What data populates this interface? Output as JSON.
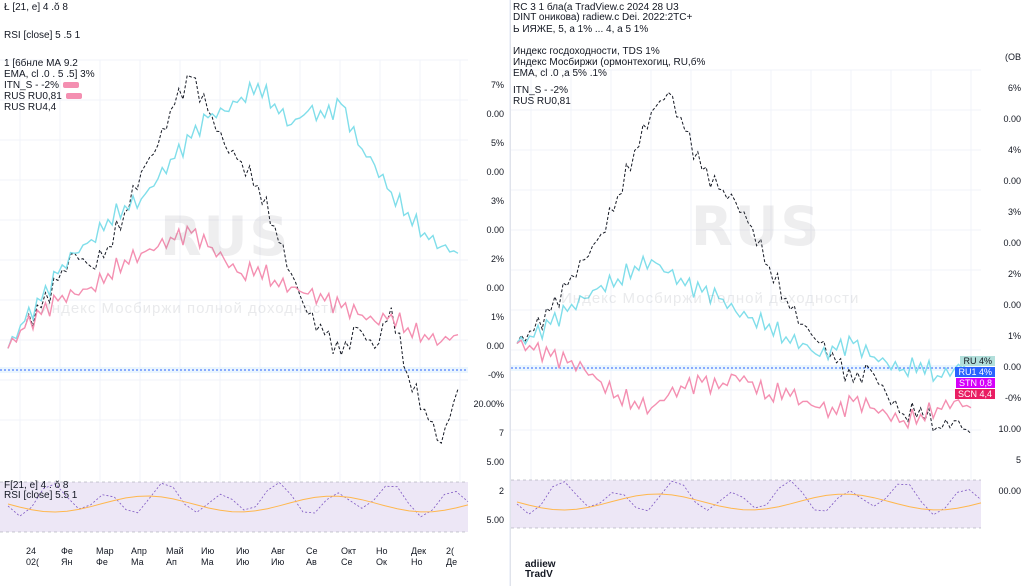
{
  "colors": {
    "series_black": "#131722",
    "series_cyan": "#80deea",
    "series_pink": "#f48fb1",
    "series_blue": "#2962ff",
    "series_orange": "#ffb74d",
    "rsi_fill": "#ede7f6",
    "grid": "#f0f3fa"
  },
  "left": {
    "header": [
      "Ł [21, e] 4 .ŏ 8",
      "RSI [close] 5 .5 1"
    ],
    "legend": [
      "1 [6бнле МА 9.2",
      "EMA, сl .0 . 5 .5] 3%",
      "IТN_S  -  -2%",
      "RUS  RU0,81",
      "RUS  RU4,4"
    ],
    "price_labels": [
      "7%",
      "0.00",
      "5%",
      "0.00",
      "3%",
      "0.00",
      "2%",
      "0.00",
      "1%",
      "0.00",
      "-0%",
      "20.00%",
      "7",
      "5.00",
      "2",
      "5.00"
    ],
    "rsi_legend": [
      "F[21, e] 4 . ŏ 8",
      "RSI [close] 5.5 1"
    ],
    "time_labels": [
      "24",
      "Фе",
      "Мар",
      "Апр",
      "Май",
      "Ию",
      "Ию",
      "Авг",
      "Се",
      "Окт",
      "Но",
      "Дек",
      "2("
    ],
    "time_sub": [
      "02(",
      "Ян",
      "Фе",
      "Ма",
      "Ап",
      "Ма",
      "Ию",
      "Ию",
      "Ав",
      "Се",
      "Ок",
      "Но",
      "Де"
    ],
    "watermark": "RUS",
    "sub_watermark": "Индекс Мосбиржи полной доходности"
  },
  "right": {
    "header": [
      "RC 3 1 бла(а TradView.c 2024 28 U3",
      "DINT оникова) radiew.c Dei. 2022:2TC+",
      "Ь ИЯЖЕ, 5, а 1% ... 4, а 5 1%"
    ],
    "legend": [
      "Индекс госдоходности, ТDS 1%",
      "Индекс Мосбиржи (ормонтехогиц, RU,б%",
      "EMA, сl .0 ,а 5% .1%",
      "IТN_S  -  -2%",
      "RUS  RU0,81"
    ],
    "price_labels": [
      "(ОВ",
      "6%",
      "0.00",
      "4%",
      "0.00",
      "3%",
      "0.00",
      "2%",
      "0.00",
      "1%",
      "0.00",
      "-0%",
      "10.00",
      "5",
      "00.00"
    ],
    "tags": [
      "RU 4%",
      "RU1 4%",
      "STN 0,8",
      "SCN 4,4"
    ],
    "time_labels": [
      "",
      "",
      "",
      "",
      "",
      "",
      "",
      "",
      "",
      "",
      "",
      "",
      ""
    ],
    "watermark": "RUS",
    "sub_watermark": "Индекс Мосбиржи полной доходности",
    "logo": [
      "adiiew",
      "TradV"
    ]
  },
  "chart_data": [
    {
      "type": "line",
      "title": "",
      "series": [
        {
          "name": "RUS RU0,81",
          "color": "#131722",
          "values": [
            0,
            6,
            12,
            20,
            28,
            24,
            30,
            40,
            52,
            60,
            72,
            80,
            70,
            60,
            55,
            48,
            36,
            22,
            10,
            4,
            -2,
            6,
            0,
            12,
            -8,
            -18,
            -28,
            -12
          ]
        },
        {
          "name": "IТN_S",
          "color": "#80deea",
          "values": [
            0,
            8,
            14,
            22,
            28,
            32,
            38,
            42,
            44,
            50,
            56,
            62,
            68,
            70,
            74,
            78,
            72,
            66,
            70,
            68,
            72,
            60,
            54,
            46,
            40,
            34,
            30,
            28
          ]
        },
        {
          "name": "RUS RU4,4",
          "color": "#f48fb1",
          "values": [
            0,
            6,
            10,
            14,
            16,
            18,
            22,
            26,
            28,
            30,
            32,
            34,
            30,
            26,
            22,
            24,
            20,
            18,
            16,
            14,
            12,
            10,
            8,
            10,
            6,
            4,
            2,
            4
          ]
        }
      ],
      "ylim": [
        -30,
        85
      ]
    },
    {
      "type": "line",
      "title": "",
      "series": [
        {
          "name": "RUS RU0,81",
          "color": "#131722",
          "values": [
            0,
            4,
            10,
            18,
            26,
            34,
            46,
            60,
            72,
            78,
            66,
            54,
            48,
            44,
            36,
            24,
            14,
            6,
            0,
            -6,
            -12,
            -8,
            -16,
            -22,
            -20,
            -26,
            -24,
            -28
          ]
        },
        {
          "name": "IТN_S",
          "color": "#80deea",
          "values": [
            0,
            2,
            6,
            10,
            14,
            18,
            20,
            24,
            26,
            22,
            18,
            16,
            14,
            10,
            8,
            6,
            2,
            0,
            -4,
            -2,
            0,
            -4,
            -6,
            -8,
            -6,
            -10,
            -8,
            -6
          ]
        },
        {
          "name": "RUS RU4,4",
          "color": "#f48fb1",
          "values": [
            0,
            -2,
            -4,
            -6,
            -8,
            -12,
            -16,
            -18,
            -20,
            -16,
            -14,
            -12,
            -14,
            -10,
            -12,
            -16,
            -14,
            -18,
            -20,
            -22,
            -18,
            -20,
            -22,
            -24,
            -22,
            -20,
            -18,
            -20
          ]
        }
      ],
      "ylim": [
        -30,
        85
      ]
    }
  ]
}
